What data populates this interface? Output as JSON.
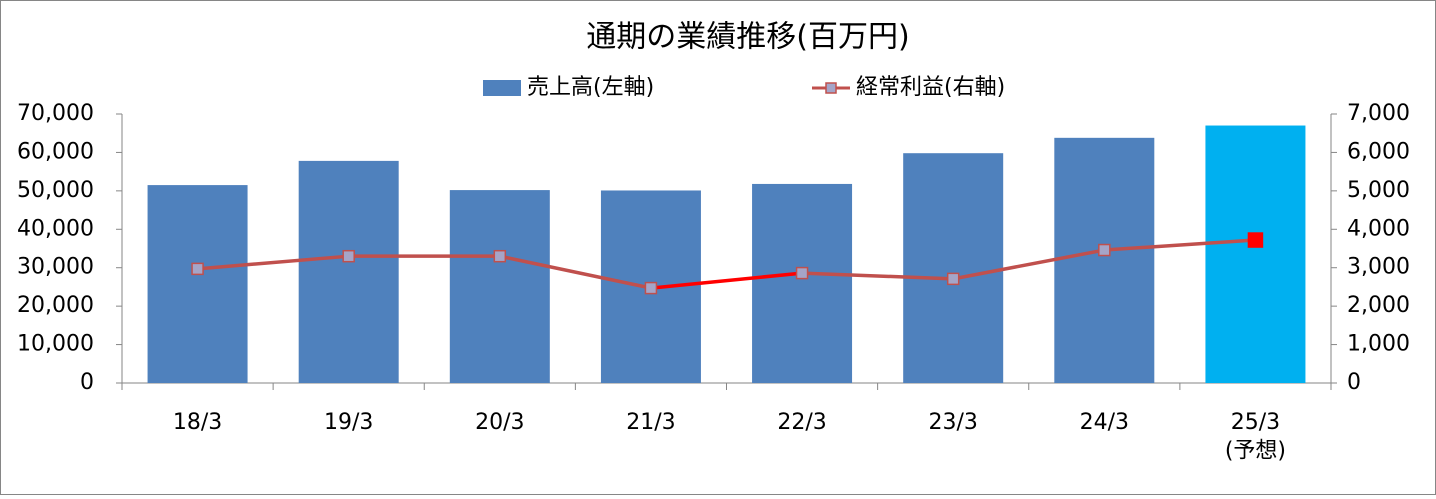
{
  "chart_data": {
    "type": "bar-line",
    "title": "通期の業績推移(百万円)",
    "categories": [
      "18/3",
      "19/3",
      "20/3",
      "21/3",
      "22/3",
      "23/3",
      "24/3",
      "25/3\n(予想)"
    ],
    "series": [
      {
        "name": "売上高(左軸)",
        "type": "bar",
        "color": "#4f81bd",
        "colors": [
          "#4f81bd",
          "#4f81bd",
          "#4f81bd",
          "#4f81bd",
          "#4f81bd",
          "#4f81bd",
          "#4f81bd",
          "#00b0f0"
        ],
        "values": [
          51500,
          57800,
          50200,
          50100,
          51800,
          59800,
          63800,
          67000
        ]
      },
      {
        "name": "経常利益(右軸)",
        "type": "line",
        "axis": "y2",
        "color": "#c0504d",
        "segment_colors": [
          "#c0504d",
          "#c0504d",
          "#c0504d",
          "#ff0000",
          "#c0504d",
          "#c0504d",
          "#c0504d"
        ],
        "marker_colors": [
          "#a5a5c8",
          "#a5a5c8",
          "#a5a5c8",
          "#a5a5c8",
          "#a5a5c8",
          "#a5a5c8",
          "#a5a5c8",
          "#ff0000"
        ],
        "values": [
          2970,
          3300,
          3300,
          2470,
          2860,
          2710,
          3460,
          3720
        ]
      }
    ],
    "ylim": [
      0,
      70000
    ],
    "yticks": [
      0,
      {
        "value": 10000,
        "label": "10,000"
      },
      {
        "value": 20000,
        "label": "20,000"
      },
      {
        "value": 30000,
        "label": "30,000"
      },
      {
        "value": 40000,
        "label": "40,000"
      },
      {
        "value": 50000,
        "label": "50,000"
      },
      {
        "value": 60000,
        "label": "60,000"
      },
      {
        "value": 70000,
        "label": "70,000"
      }
    ],
    "y2lim": [
      0,
      7000
    ],
    "y2ticks": [
      0,
      {
        "value": 1000,
        "label": "1,000"
      },
      {
        "value": 2000,
        "label": "2,000"
      },
      {
        "value": 3000,
        "label": "3,000"
      },
      {
        "value": 4000,
        "label": "4,000"
      },
      {
        "value": 5000,
        "label": "5,000"
      },
      {
        "value": 6000,
        "label": "6,000"
      },
      {
        "value": 7000,
        "label": "7,000"
      }
    ],
    "grid": false,
    "legend": "top"
  }
}
